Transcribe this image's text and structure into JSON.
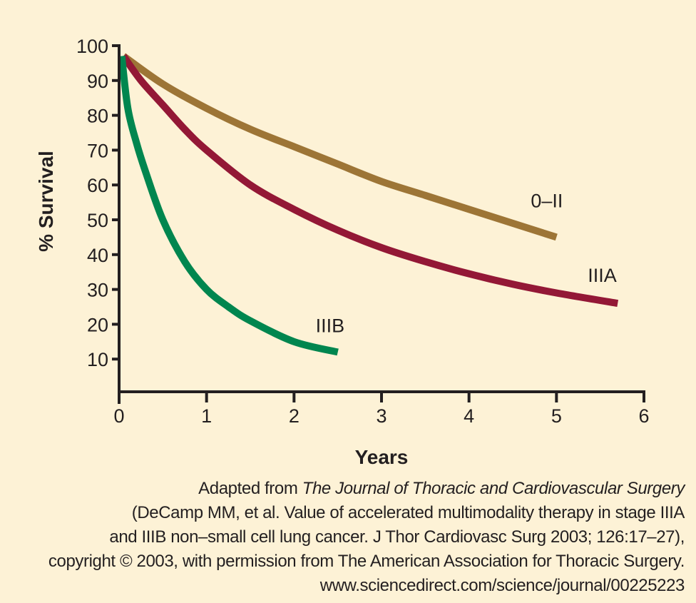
{
  "chart_data": {
    "type": "line",
    "title": "",
    "xlabel": "Years",
    "ylabel": "% Survival",
    "xlim": [
      0,
      6
    ],
    "ylim": [
      0,
      100
    ],
    "xticks": [
      0,
      1,
      2,
      3,
      4,
      5,
      6
    ],
    "yticks": [
      10,
      20,
      30,
      40,
      50,
      60,
      70,
      80,
      90,
      100
    ],
    "grid": false,
    "legend": "inline labels at curve ends",
    "series": [
      {
        "name": "0–II",
        "color": "#9d7536",
        "x": [
          0.05,
          0.5,
          1,
          1.5,
          2,
          2.5,
          3,
          3.5,
          4,
          4.5,
          5
        ],
        "y": [
          97,
          89,
          82,
          76,
          71,
          66,
          61,
          57,
          53,
          49,
          45
        ]
      },
      {
        "name": "IIIA",
        "color": "#931836",
        "x": [
          0.05,
          0.25,
          0.5,
          0.75,
          1,
          1.5,
          2,
          2.5,
          3,
          3.5,
          4,
          4.5,
          5,
          5.7
        ],
        "y": [
          97,
          90,
          83,
          76,
          70,
          60,
          53,
          47,
          42,
          38,
          34.5,
          31.5,
          29,
          26
        ]
      },
      {
        "name": "IIIB",
        "color": "#00864f",
        "x": [
          0.03,
          0.1,
          0.2,
          0.3,
          0.5,
          0.75,
          1,
          1.25,
          1.5,
          2,
          2.5
        ],
        "y": [
          97,
          82,
          72,
          64,
          50,
          38,
          30,
          25,
          21,
          15,
          12
        ]
      }
    ]
  },
  "axis_color": "#231f20",
  "credit": {
    "line1_prefix": "Adapted from ",
    "line1_journal": "The Journal of Thoracic and Cardiovascular Surgery",
    "line2": "(DeCamp MM, et al. Value of accelerated multimodality therapy in stage IIIA",
    "line3": "and IIIB non–small cell lung cancer. J Thor Cardiovasc Surg 2003; 126:17–27),",
    "line4": "copyright © 2003, with permission from The American Association for Thoracic Surgery.",
    "line5": "www.sciencedirect.com/science/journal/00225223"
  }
}
